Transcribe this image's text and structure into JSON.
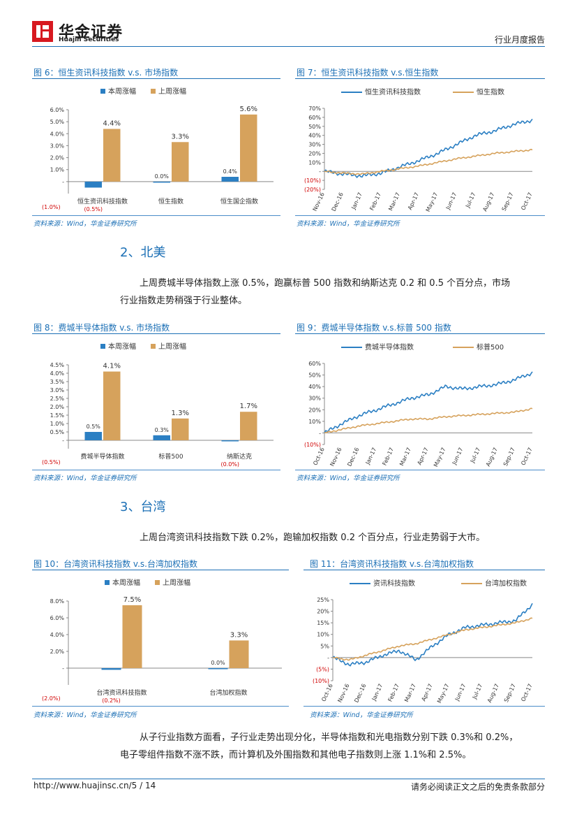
{
  "header": {
    "logo_cn": "华金证券",
    "logo_en": "Huajin Securities",
    "report_type": "行业月度报告"
  },
  "colors": {
    "this_week": "#2b7fc3",
    "last_week": "#d6a25c",
    "accent": "#1b6fb5",
    "negative": "#d00000"
  },
  "figures": {
    "fig6": {
      "title": "图 6：恒生资讯科技指数 v.s. 市场指数",
      "source": "资料来源：Wind，华金证券研究所"
    },
    "fig7": {
      "title": "图 7：恒生资讯科技指数 v.s.恒生指数",
      "source": "资料来源：Wind，华金证券研究所"
    },
    "fig8": {
      "title": "图 8：费城半导体指数 v.s. 市场指数",
      "source": "资料来源：Wind，华金证券研究所"
    },
    "fig9": {
      "title": "图 9：费城半导体指数 v.s.标普 500 指数",
      "source": "资料来源：Wind，华金证券研究所"
    },
    "fig10": {
      "title": "图 10：台湾资讯科技指数 v.s.台湾加权指数",
      "source": "资料来源：Wind，华金证券研究所"
    },
    "fig11": {
      "title": "图 11：台湾资讯科技指数 v.s.台湾加权指数",
      "source": "资料来源：Wind，华金证券研究所"
    }
  },
  "sections": {
    "s2": {
      "heading": "2、北美",
      "para_line1": "上周费城半导体指数上涨 0.5%，跑赢标普 500 指数和纳斯达克 0.2 和 0.5 个百分点，市场",
      "para_line2": "行业指数走势稍强于行业整体。"
    },
    "s3": {
      "heading": "3、台湾",
      "para_line1": "上周台湾资讯科技指数下跌 0.2%，跑输加权指数 0.2 个百分点，行业走势弱于大市。"
    },
    "s4": {
      "para_line1": "从子行业指数方面看，子行业走势出现分化，半导体指数和光电指数分别下跌 0.3%和 0.2%，",
      "para_line2": "电子零组件指数不涨不跌，而计算机及外围指数和其他电子指数则上涨 1.1%和 2.5%。"
    }
  },
  "footer": {
    "url": "http://www.huajinsc.cn/",
    "page": "5 / 14",
    "disclaimer": "请务必阅读正文之后的免责条款部分"
  },
  "chart_data": [
    {
      "id": "fig6",
      "type": "bar",
      "legend": [
        "本周涨幅",
        "上周涨幅"
      ],
      "categories": [
        "恒生资讯科技指数",
        "恒生指数",
        "恒生国企指数"
      ],
      "series": [
        {
          "name": "本周涨幅",
          "values": [
            -0.5,
            0.0,
            0.4
          ]
        },
        {
          "name": "上周涨幅",
          "values": [
            4.4,
            3.3,
            5.6
          ]
        }
      ],
      "data_labels": [
        "(0.5%)",
        "0.0%",
        "0.4%",
        "4.4%",
        "3.3%",
        "5.6%"
      ],
      "yticks": [
        "(1.0%)",
        "-",
        "1.0%",
        "2.0%",
        "3.0%",
        "4.0%",
        "5.0%",
        "6.0%"
      ],
      "ylim": [
        -1,
        6
      ]
    },
    {
      "id": "fig7",
      "type": "line",
      "legend": [
        "恒生资讯科技指数",
        "恒生指数"
      ],
      "xticks": [
        "Nov-16",
        "Dec-16",
        "Jan-17",
        "Feb-17",
        "Mar-17",
        "Apr-17",
        "May-17",
        "Jun-17",
        "Jul-17",
        "Aug-17",
        "Sep-17",
        "Oct-17"
      ],
      "yticks": [
        "(20%)",
        "(10%)",
        "-",
        "10%",
        "20%",
        "30%",
        "40%",
        "50%",
        "60%",
        "70%"
      ],
      "ylim": [
        -20,
        70
      ],
      "series": [
        {
          "name": "恒生资讯科技指数",
          "values": [
            0,
            -3,
            -5,
            -2,
            5,
            12,
            20,
            30,
            40,
            45,
            52,
            57
          ]
        },
        {
          "name": "恒生指数",
          "values": [
            0,
            -2,
            -3,
            0,
            3,
            6,
            10,
            14,
            17,
            20,
            22,
            24
          ]
        }
      ]
    },
    {
      "id": "fig8",
      "type": "bar",
      "legend": [
        "本周涨幅",
        "上周涨幅"
      ],
      "categories": [
        "费城半导体指数",
        "标普500",
        "纳斯达克"
      ],
      "series": [
        {
          "name": "本周涨幅",
          "values": [
            0.5,
            0.3,
            -0.0
          ]
        },
        {
          "name": "上周涨幅",
          "values": [
            4.1,
            1.3,
            1.7
          ]
        }
      ],
      "data_labels": [
        "0.5%",
        "0.3%",
        "(0.0%)",
        "4.1%",
        "1.3%",
        "1.7%"
      ],
      "yticks": [
        "(0.5%)",
        "-",
        "0.5%",
        "1.0%",
        "1.5%",
        "2.0%",
        "2.5%",
        "3.0%",
        "3.5%",
        "4.0%",
        "4.5%"
      ],
      "ylim": [
        -0.5,
        4.5
      ]
    },
    {
      "id": "fig9",
      "type": "line",
      "legend": [
        "费城半导体指数",
        "标普500"
      ],
      "xticks": [
        "Oct-16",
        "Nov-16",
        "Dec-16",
        "Jan-17",
        "Feb-17",
        "Mar-17",
        "Apr-17",
        "May-17",
        "Jun-17",
        "Jul-17",
        "Aug-17",
        "Sep-17",
        "Oct-17"
      ],
      "yticks": [
        "(10%)",
        "-",
        "10%",
        "20%",
        "30%",
        "40%",
        "50%",
        "60%"
      ],
      "ylim": [
        -10,
        60
      ],
      "series": [
        {
          "name": "费城半导体指数",
          "values": [
            0,
            8,
            15,
            20,
            25,
            30,
            33,
            40,
            38,
            40,
            42,
            46,
            52
          ]
        },
        {
          "name": "标普500",
          "values": [
            0,
            3,
            6,
            8,
            10,
            12,
            12,
            14,
            15,
            16,
            17,
            18,
            21
          ]
        }
      ]
    },
    {
      "id": "fig10",
      "type": "bar",
      "legend": [
        "本周涨幅",
        "上周涨幅"
      ],
      "categories": [
        "台湾资讯科技指数",
        "台湾加权指数"
      ],
      "series": [
        {
          "name": "本周涨幅",
          "values": [
            -0.2,
            0.0
          ]
        },
        {
          "name": "上周涨幅",
          "values": [
            7.5,
            3.3
          ]
        }
      ],
      "data_labels": [
        "(0.2%)",
        "0.0%",
        "7.5%",
        "3.3%"
      ],
      "yticks": [
        "(2.0%)",
        "-",
        "2.0%",
        "4.0%",
        "6.0%",
        "8.0%"
      ],
      "ylim": [
        -2,
        8
      ]
    },
    {
      "id": "fig11",
      "type": "line",
      "legend": [
        "资讯科技指数",
        "台湾加权指数"
      ],
      "xticks": [
        "Oct-16",
        "Nov-16",
        "Dec-16",
        "Jan-17",
        "Feb-17",
        "Mar-17",
        "Apr-17",
        "May-17",
        "Jun-17",
        "Jul-17",
        "Aug-17",
        "Sep-17",
        "Oct-17"
      ],
      "yticks": [
        "(10%)",
        "(5%)",
        "-",
        "5%",
        "10%",
        "15%",
        "20%",
        "25%"
      ],
      "ylim": [
        -10,
        25
      ],
      "series": [
        {
          "name": "资讯科技指数",
          "values": [
            0,
            -3,
            -2,
            1,
            3,
            -1,
            5,
            10,
            13,
            14,
            15,
            16,
            23
          ]
        },
        {
          "name": "台湾加权指数",
          "values": [
            0,
            -1,
            1,
            3,
            5,
            6,
            8,
            10,
            12,
            13,
            14,
            15,
            17
          ]
        }
      ]
    }
  ]
}
